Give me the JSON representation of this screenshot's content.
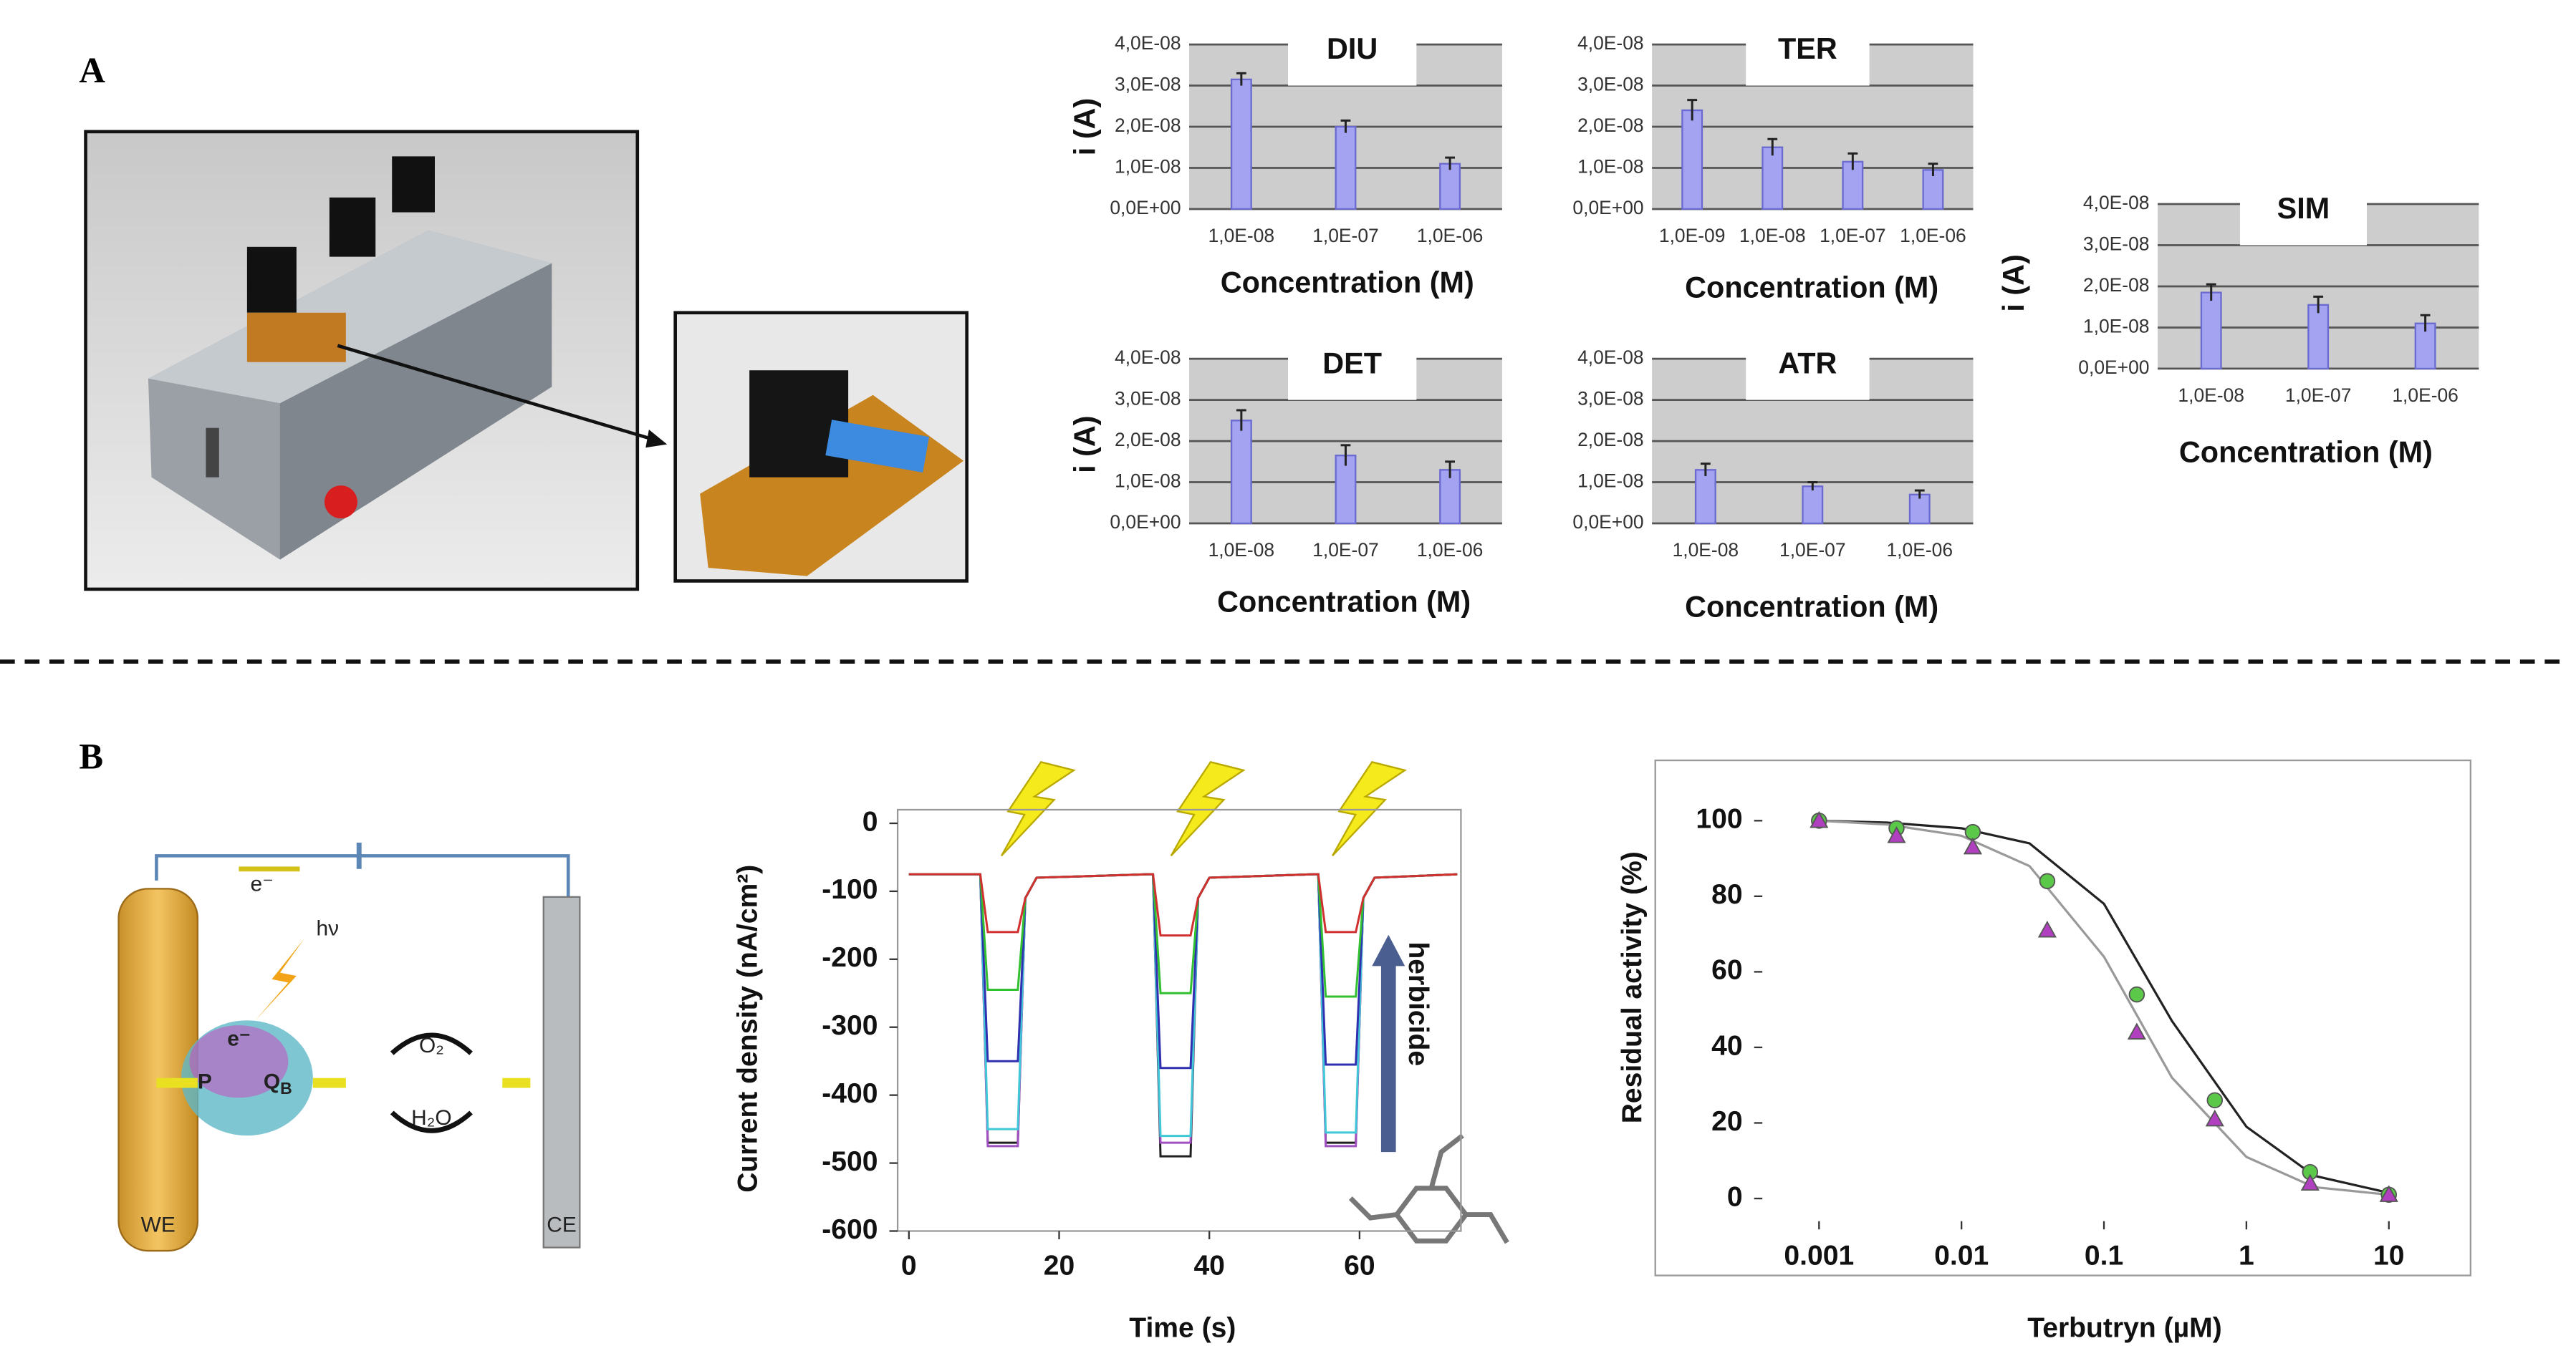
{
  "panels": {
    "a": "A",
    "b": "B"
  },
  "diagram": {
    "we": "WE",
    "ce": "CE",
    "hv": "hν",
    "e_wire": "e⁻",
    "e_protein": "e⁻",
    "p": "P",
    "q": "Q",
    "q_sub": "B",
    "o2": "O₂",
    "h2o": "H₂O"
  },
  "chart_data": [
    {
      "type": "bar",
      "title": "DIU",
      "ylabel": "i (A)",
      "xlabel": "Concentration (M)",
      "categories": [
        "1,0E-08",
        "1,0E-07",
        "1,0E-06"
      ],
      "values": [
        3.15e-08,
        2e-08,
        1.1e-08
      ],
      "errors": [
        1.5e-09,
        1.5e-09,
        1.5e-09
      ],
      "color": "#a3a3f2",
      "ylim": [
        0,
        4e-08
      ],
      "grid": true,
      "yticks": [
        {
          "value": 0,
          "label": "0,0E+00"
        },
        {
          "value": 1e-08,
          "label": "1,0E-08"
        },
        {
          "value": 2e-08,
          "label": "2,0E-08"
        },
        {
          "value": 3e-08,
          "label": "3,0E-08"
        },
        {
          "value": 4e-08,
          "label": "4,0E-08"
        }
      ]
    },
    {
      "type": "bar",
      "title": "TER",
      "xlabel": "Concentration (M)",
      "categories": [
        "1,0E-09",
        "1,0E-08",
        "1,0E-07",
        "1,0E-06"
      ],
      "values": [
        2.4e-08,
        1.5e-08,
        1.15e-08,
        9.5e-09
      ],
      "errors": [
        2.5e-09,
        2e-09,
        2e-09,
        1.5e-09
      ],
      "color": "#a3a3f2",
      "ylim": [
        0,
        4e-08
      ],
      "grid": true,
      "yticks": [
        {
          "value": 0,
          "label": "0,0E+00"
        },
        {
          "value": 1e-08,
          "label": "1,0E-08"
        },
        {
          "value": 2e-08,
          "label": "2,0E-08"
        },
        {
          "value": 3e-08,
          "label": "3,0E-08"
        },
        {
          "value": 4e-08,
          "label": "4,0E-08"
        }
      ]
    },
    {
      "type": "bar",
      "title": "DET",
      "ylabel": "i (A)",
      "xlabel": "Concentration (M)",
      "categories": [
        "1,0E-08",
        "1,0E-07",
        "1,0E-06"
      ],
      "values": [
        2.5e-08,
        1.65e-08,
        1.3e-08
      ],
      "errors": [
        2.5e-09,
        2.5e-09,
        2e-09
      ],
      "color": "#a3a3f2",
      "ylim": [
        0,
        4e-08
      ],
      "grid": true,
      "yticks": [
        {
          "value": 0,
          "label": "0,0E+00"
        },
        {
          "value": 1e-08,
          "label": "1,0E-08"
        },
        {
          "value": 2e-08,
          "label": "2,0E-08"
        },
        {
          "value": 3e-08,
          "label": "3,0E-08"
        },
        {
          "value": 4e-08,
          "label": "4,0E-08"
        }
      ]
    },
    {
      "type": "bar",
      "title": "ATR",
      "xlabel": "Concentration (M)",
      "categories": [
        "1,0E-08",
        "1,0E-07",
        "1,0E-06"
      ],
      "values": [
        1.3e-08,
        9e-09,
        7e-09
      ],
      "errors": [
        1.5e-09,
        1e-09,
        1e-09
      ],
      "color": "#a3a3f2",
      "ylim": [
        0,
        4e-08
      ],
      "grid": true,
      "yticks": [
        {
          "value": 0,
          "label": "0,0E+00"
        },
        {
          "value": 1e-08,
          "label": "1,0E-08"
        },
        {
          "value": 2e-08,
          "label": "2,0E-08"
        },
        {
          "value": 3e-08,
          "label": "3,0E-08"
        },
        {
          "value": 4e-08,
          "label": "4,0E-08"
        }
      ]
    },
    {
      "type": "bar",
      "title": "SIM",
      "ylabel": "i (A)",
      "xlabel": "Concentration (M)",
      "categories": [
        "1,0E-08",
        "1,0E-07",
        "1,0E-06"
      ],
      "values": [
        1.85e-08,
        1.55e-08,
        1.1e-08
      ],
      "errors": [
        2e-09,
        2e-09,
        2e-09
      ],
      "color": "#a3a3f2",
      "ylim": [
        0,
        4e-08
      ],
      "grid": true,
      "yticks": [
        {
          "value": 0,
          "label": "0,0E+00"
        },
        {
          "value": 1e-08,
          "label": "1,0E-08"
        },
        {
          "value": 2e-08,
          "label": "2,0E-08"
        },
        {
          "value": 3e-08,
          "label": "3,0E-08"
        },
        {
          "value": 4e-08,
          "label": "4,0E-08"
        }
      ]
    },
    {
      "type": "line",
      "ylabel": "Current density (nA/cm²)",
      "xlabel": "Time (s)",
      "annotation": "herbicide",
      "x": [
        0,
        9.5,
        10.5,
        14.5,
        15.5,
        17,
        32,
        32.5,
        33.5,
        37.5,
        38.5,
        40,
        54,
        54.5,
        55.5,
        59.5,
        60.5,
        62,
        73
      ],
      "series": [
        {
          "color": "#202020",
          "values": [
            -75,
            -75,
            -470,
            -470,
            -110,
            -80,
            -75,
            -75,
            -490,
            -490,
            -110,
            -80,
            -75,
            -75,
            -470,
            -470,
            -110,
            -80,
            -75
          ]
        },
        {
          "color": "#a050c0",
          "values": [
            -75,
            -75,
            -475,
            -475,
            -110,
            -80,
            -75,
            -75,
            -470,
            -470,
            -110,
            -80,
            -75,
            -75,
            -475,
            -475,
            -110,
            -80,
            -75
          ]
        },
        {
          "color": "#40c8d8",
          "values": [
            -75,
            -75,
            -450,
            -450,
            -110,
            -80,
            -75,
            -75,
            -460,
            -460,
            -110,
            -80,
            -75,
            -75,
            -455,
            -455,
            -110,
            -80,
            -75
          ]
        },
        {
          "color": "#3030b0",
          "values": [
            -75,
            -75,
            -350,
            -350,
            -110,
            -80,
            -75,
            -75,
            -360,
            -360,
            -110,
            -80,
            -75,
            -75,
            -355,
            -355,
            -110,
            -80,
            -75
          ]
        },
        {
          "color": "#30c030",
          "values": [
            -75,
            -75,
            -245,
            -245,
            -110,
            -80,
            -75,
            -75,
            -250,
            -250,
            -110,
            -80,
            -75,
            -75,
            -255,
            -255,
            -110,
            -80,
            -75
          ]
        },
        {
          "color": "#d03030",
          "values": [
            -75,
            -75,
            -160,
            -160,
            -110,
            -80,
            -75,
            -75,
            -165,
            -165,
            -110,
            -80,
            -75,
            -75,
            -160,
            -160,
            -110,
            -80,
            -75
          ]
        }
      ],
      "xlim": [
        -1.5,
        73.5
      ],
      "ylim": [
        -600,
        20
      ],
      "xticks": [
        0,
        20,
        40,
        60
      ],
      "yticks": [
        -600,
        -500,
        -400,
        -300,
        -200,
        -100,
        0
      ]
    },
    {
      "type": "scatter",
      "ylabel": "Residual activity (%)",
      "xlabel": "Terbutryn (µM)",
      "log_x": true,
      "series": [
        {
          "color": "#222222",
          "marker": "line",
          "x": [
            0.001,
            0.003,
            0.01,
            0.03,
            0.1,
            0.3,
            1,
            3,
            10
          ],
          "values": [
            100,
            99.5,
            98,
            94,
            78,
            47,
            19,
            6,
            1.5
          ]
        },
        {
          "color": "#999999",
          "marker": "line",
          "x": [
            0.001,
            0.003,
            0.01,
            0.03,
            0.1,
            0.3,
            1,
            3,
            10
          ],
          "values": [
            100,
            99,
            96,
            88,
            64,
            32,
            11,
            3,
            1
          ]
        },
        {
          "color": "#5cc84a",
          "marker": "circle",
          "x": [
            0.001,
            0.0035,
            0.012,
            0.04,
            0.17,
            0.6,
            2.8,
            10
          ],
          "values": [
            100,
            98,
            97,
            84,
            54,
            26,
            7,
            1
          ]
        },
        {
          "color": "#b040c0",
          "marker": "triangle",
          "x": [
            0.001,
            0.0035,
            0.012,
            0.04,
            0.17,
            0.6,
            2.8,
            10
          ],
          "values": [
            100,
            96,
            93,
            71,
            44,
            21,
            4,
            1
          ]
        }
      ],
      "xlim": [
        0.0004,
        22
      ],
      "ylim": [
        -6,
        109
      ],
      "xticks": [
        0.001,
        0.01,
        0.1,
        1,
        10
      ],
      "yticks": [
        0,
        20,
        40,
        60,
        80,
        100
      ]
    }
  ]
}
